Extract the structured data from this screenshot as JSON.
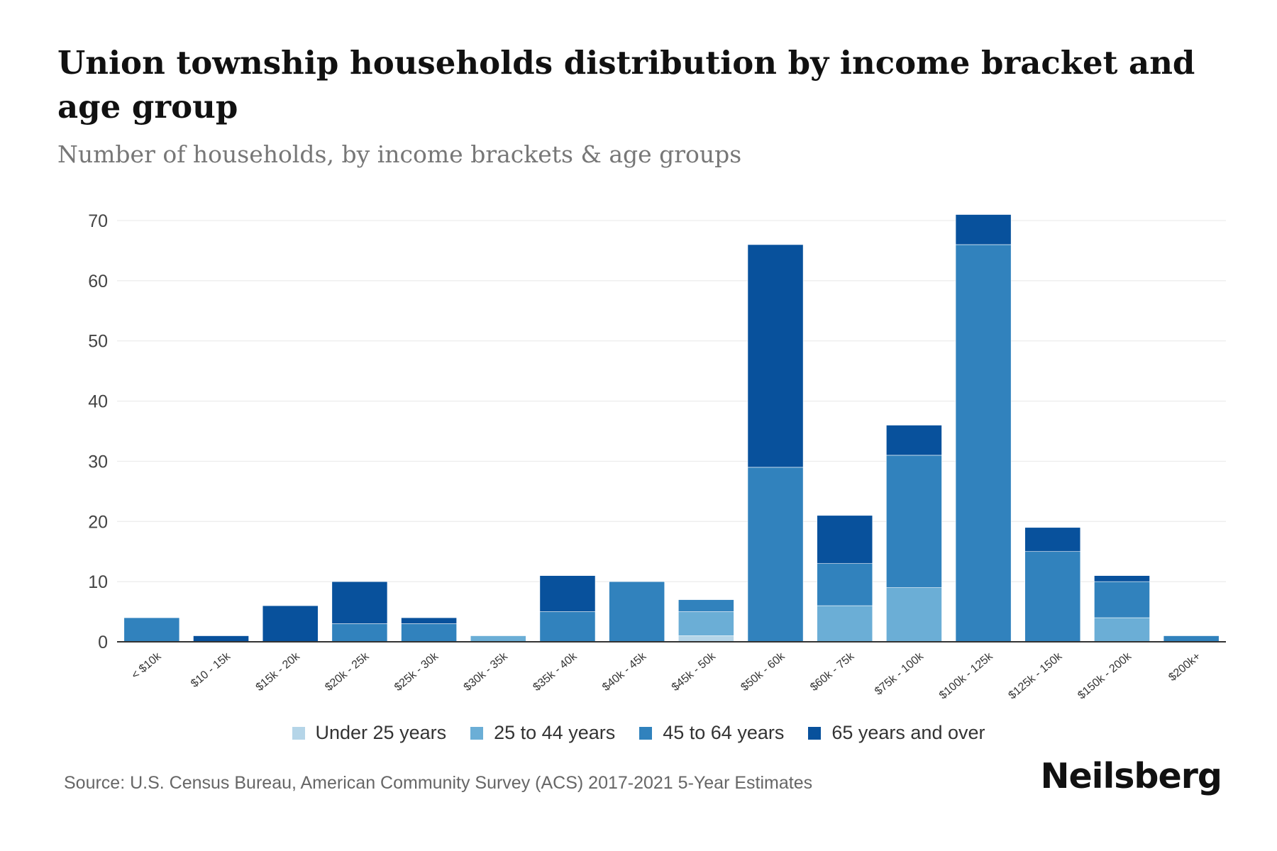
{
  "header": {
    "title": "Union township households distribution by income bracket and age group",
    "subtitle": "Number of households, by income brackets & age groups"
  },
  "footer": {
    "source": "Source: U.S. Census Bureau, American Community Survey (ACS) 2017-2021 5-Year Estimates",
    "brand": "Neilsberg"
  },
  "chart_data": {
    "type": "bar",
    "stacked": true,
    "title": "Union township households distribution by income bracket and age group",
    "subtitle": "Number of households, by income brackets & age groups",
    "xlabel": "",
    "ylabel": "",
    "ylim": [
      0,
      70
    ],
    "yticks": [
      0,
      10,
      20,
      30,
      40,
      50,
      60,
      70
    ],
    "grid": true,
    "legend_position": "bottom",
    "categories": [
      "< $10k",
      "$10 - 15k",
      "$15k - 20k",
      "$20k - 25k",
      "$25k - 30k",
      "$30k - 35k",
      "$35k - 40k",
      "$40k - 45k",
      "$45k - 50k",
      "$50k - 60k",
      "$60k - 75k",
      "$75k - 100k",
      "$100k - 125k",
      "$125k - 150k",
      "$150k - 200k",
      "$200k+"
    ],
    "series": [
      {
        "name": "Under 25 years",
        "color": "#b5d5e8",
        "values": [
          0,
          0,
          0,
          0,
          0,
          0,
          0,
          0,
          1,
          0,
          0,
          0,
          0,
          0,
          0,
          0
        ]
      },
      {
        "name": "25 to 44 years",
        "color": "#6baed6",
        "values": [
          0,
          0,
          0,
          0,
          0,
          1,
          0,
          0,
          4,
          0,
          6,
          9,
          0,
          0,
          4,
          0
        ]
      },
      {
        "name": "45 to 64 years",
        "color": "#3182bd",
        "values": [
          4,
          0,
          0,
          3,
          3,
          0,
          5,
          10,
          2,
          29,
          7,
          22,
          66,
          15,
          6,
          1
        ]
      },
      {
        "name": "65 years and over",
        "color": "#08519c",
        "values": [
          0,
          1,
          6,
          7,
          1,
          0,
          6,
          0,
          0,
          37,
          8,
          5,
          5,
          4,
          1,
          0
        ]
      }
    ]
  }
}
